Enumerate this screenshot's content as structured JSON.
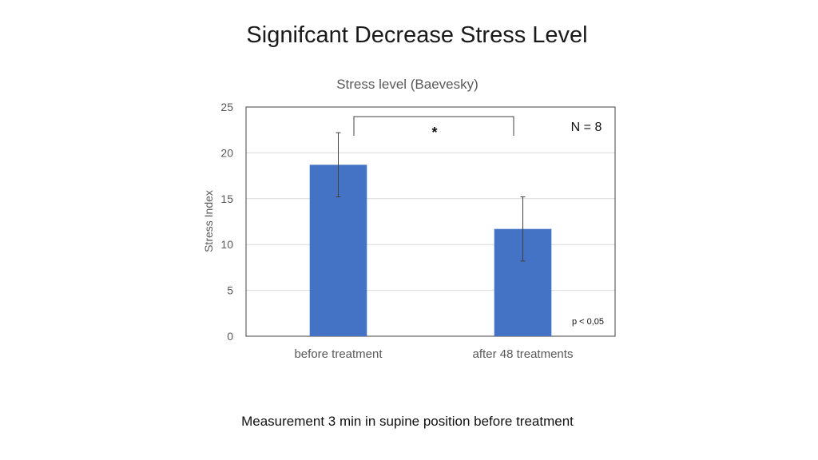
{
  "slide": {
    "title": "Signifcant Decrease Stress Level",
    "footnote": "Measurement 3 min in supine position before treatment"
  },
  "chart_data": {
    "type": "bar",
    "title": "Stress level (Baevesky)",
    "xlabel": "",
    "ylabel": "Stress Index",
    "categories": [
      "before treatment",
      "after 48 treatments"
    ],
    "values": [
      18.7,
      11.7
    ],
    "error": [
      3.5,
      3.5
    ],
    "ylim": [
      0,
      25
    ],
    "yticks": [
      0,
      5,
      10,
      15,
      20,
      25
    ],
    "grid": true,
    "bar_color": "#4472C4",
    "annotations": {
      "n": "N = 8",
      "p": "p < 0,05",
      "significance": "*"
    }
  }
}
